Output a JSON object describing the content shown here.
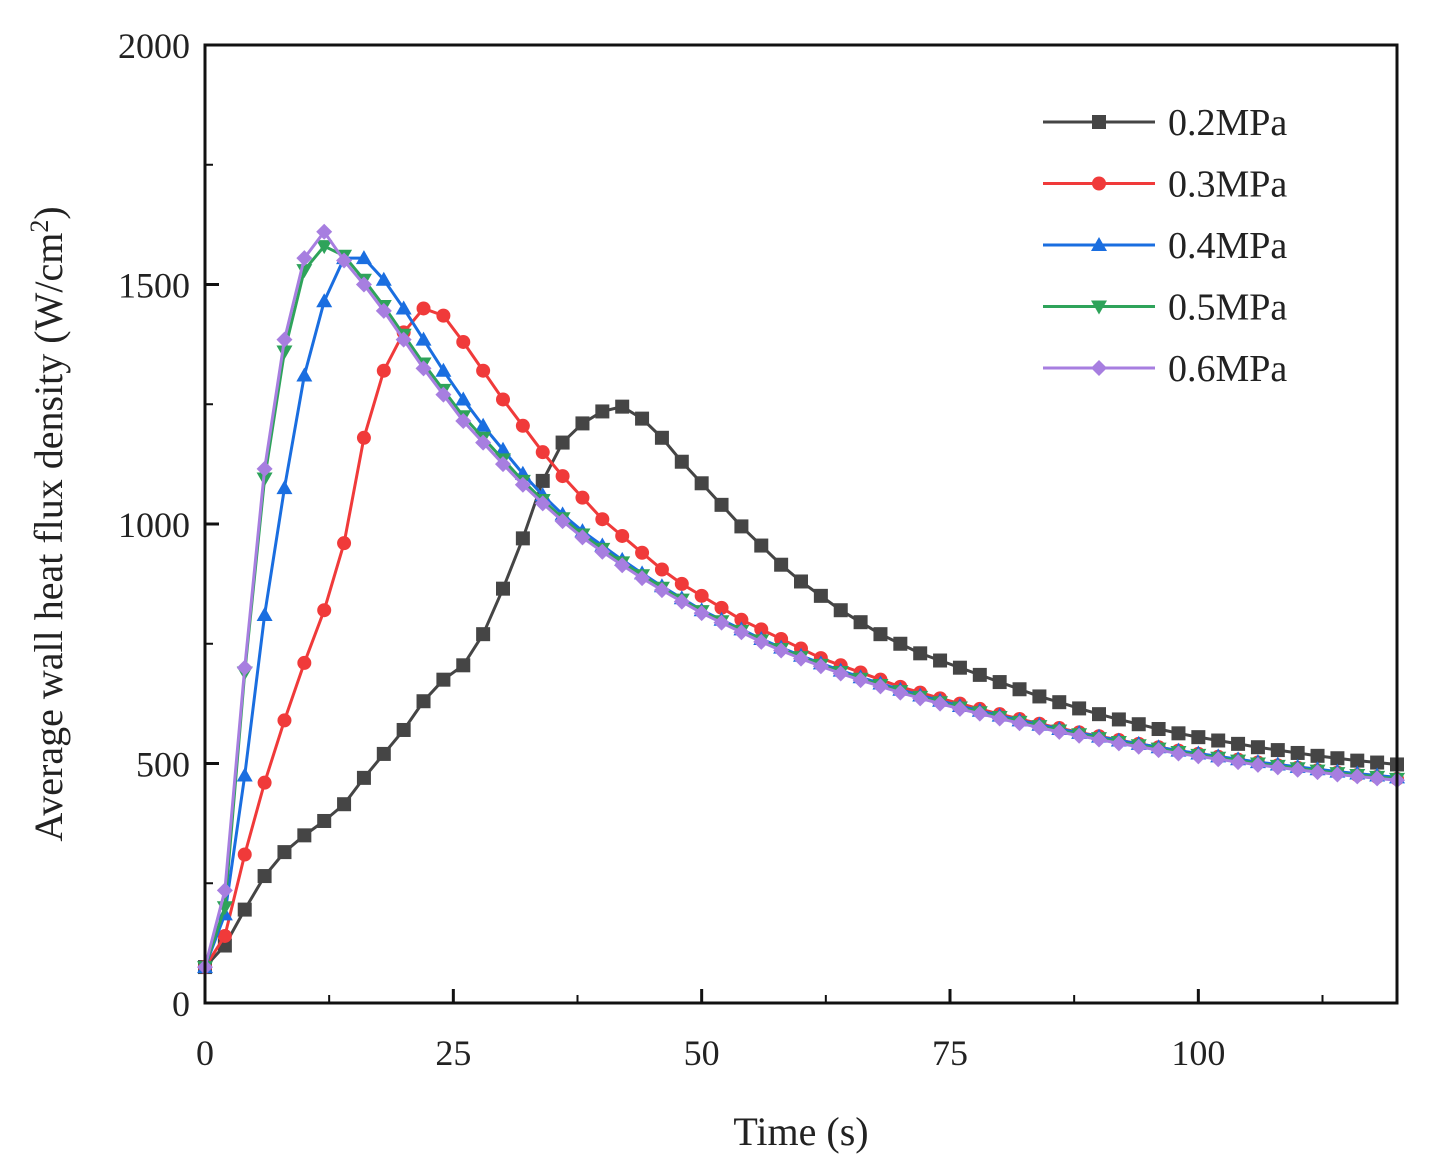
{
  "chart_data": {
    "type": "line",
    "title": "",
    "xlabel": "Time (s)",
    "ylabel": "Average wall heat flux density (W/cm",
    "ylabel_sup": "2",
    "ylabel_end": ")",
    "xlim": [
      0,
      120
    ],
    "ylim": [
      0,
      2000
    ],
    "xticks": [
      0,
      25,
      50,
      75,
      100
    ],
    "yticks": [
      0,
      500,
      1000,
      1500,
      2000
    ],
    "grid": false,
    "legend_position": "top-right",
    "x": [
      0,
      2,
      4,
      6,
      8,
      10,
      12,
      14,
      16,
      18,
      20,
      22,
      24,
      26,
      28,
      30,
      32,
      34,
      36,
      38,
      40,
      42,
      44,
      46,
      48,
      50,
      52,
      54,
      56,
      58,
      60,
      62,
      64,
      66,
      68,
      70,
      72,
      74,
      76,
      78,
      80,
      82,
      84,
      86,
      88,
      90,
      92,
      94,
      96,
      98,
      100,
      102,
      104,
      106,
      108,
      110,
      112,
      114,
      116,
      118,
      120
    ],
    "series": [
      {
        "name": "0.2MPa",
        "color": "#454545",
        "marker": "square",
        "values": [
          75,
          120,
          195,
          265,
          315,
          350,
          380,
          415,
          470,
          520,
          570,
          630,
          675,
          705,
          770,
          865,
          970,
          1090,
          1170,
          1210,
          1235,
          1245,
          1220,
          1180,
          1130,
          1085,
          1040,
          995,
          955,
          915,
          880,
          850,
          820,
          795,
          770,
          750,
          730,
          715,
          700,
          685,
          670,
          655,
          640,
          628,
          615,
          603,
          592,
          582,
          572,
          563,
          555,
          548,
          541,
          534,
          528,
          522,
          516,
          511,
          506,
          502,
          498
        ]
      },
      {
        "name": "0.3MPa",
        "color": "#f03a3a",
        "marker": "circle",
        "values": [
          75,
          140,
          310,
          460,
          590,
          710,
          820,
          960,
          1180,
          1320,
          1400,
          1450,
          1435,
          1380,
          1320,
          1260,
          1205,
          1150,
          1100,
          1055,
          1010,
          975,
          940,
          905,
          875,
          850,
          825,
          800,
          780,
          760,
          740,
          720,
          705,
          690,
          675,
          660,
          648,
          636,
          625,
          614,
          603,
          593,
          583,
          574,
          565,
          557,
          549,
          541,
          534,
          527,
          520,
          514,
          508,
          502,
          496,
          491,
          486,
          481,
          476,
          472,
          468
        ]
      },
      {
        "name": "0.4MPa",
        "color": "#1a6ee0",
        "marker": "triangle-up",
        "values": [
          75,
          185,
          475,
          810,
          1075,
          1310,
          1465,
          1555,
          1555,
          1510,
          1450,
          1385,
          1320,
          1260,
          1205,
          1155,
          1105,
          1060,
          1020,
          985,
          955,
          925,
          897,
          870,
          845,
          820,
          800,
          780,
          760,
          742,
          725,
          709,
          694,
          680,
          667,
          654,
          642,
          631,
          620,
          610,
          600,
          590,
          581,
          572,
          564,
          556,
          548,
          541,
          534,
          527,
          521,
          515,
          509,
          503,
          498,
          493,
          488,
          483,
          479,
          475,
          471
        ]
      },
      {
        "name": "0.5MPa",
        "color": "#2ea35a",
        "marker": "triangle-down",
        "values": [
          75,
          200,
          690,
          1095,
          1360,
          1530,
          1580,
          1560,
          1510,
          1455,
          1395,
          1335,
          1280,
          1225,
          1180,
          1135,
          1090,
          1050,
          1012,
          978,
          948,
          920,
          893,
          867,
          842,
          818,
          797,
          777,
          757,
          739,
          722,
          706,
          691,
          677,
          664,
          651,
          639,
          628,
          617,
          607,
          597,
          587,
          578,
          569,
          561,
          553,
          545,
          538,
          531,
          524,
          518,
          512,
          506,
          500,
          495,
          490,
          485,
          480,
          476,
          472,
          468
        ]
      },
      {
        "name": "0.6MPa",
        "color": "#a77ee0",
        "marker": "diamond",
        "values": [
          75,
          235,
          700,
          1115,
          1385,
          1555,
          1610,
          1550,
          1500,
          1445,
          1385,
          1325,
          1270,
          1215,
          1170,
          1125,
          1082,
          1043,
          1006,
          972,
          942,
          914,
          887,
          862,
          838,
          814,
          794,
          774,
          754,
          736,
          719,
          703,
          688,
          674,
          661,
          648,
          636,
          625,
          614,
          604,
          594,
          584,
          575,
          566,
          558,
          550,
          542,
          535,
          528,
          521,
          515,
          509,
          503,
          497,
          492,
          487,
          482,
          477,
          473,
          469,
          465
        ]
      }
    ]
  }
}
